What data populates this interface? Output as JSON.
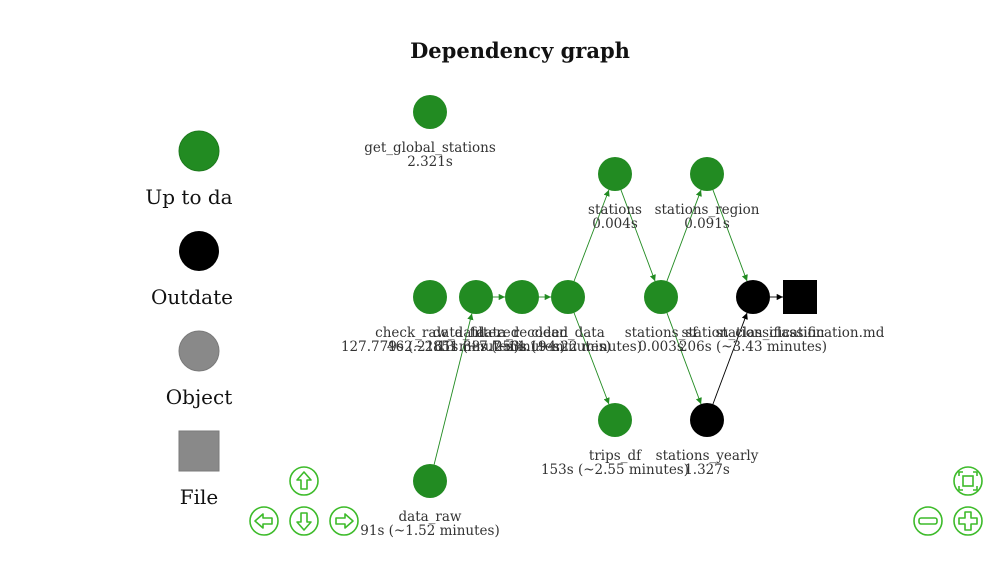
{
  "title": "Dependency graph",
  "colors": {
    "up_to_date": "#228b22",
    "outdated": "#000000",
    "object": "#898989",
    "file": "#898989",
    "edge_green": "#228b22",
    "edge_black": "#000000",
    "nav": "#3dbb2a"
  },
  "legend": {
    "up_to_date": "Up to da",
    "outdated": "Outdate",
    "object": "Object",
    "file": "File"
  },
  "nodes": {
    "get_global_stations": {
      "name": "get_global_stations",
      "time": "2.321s",
      "status": "up_to_date"
    },
    "stations": {
      "name": "stations",
      "time": "0.004s",
      "status": "up_to_date"
    },
    "stations_region": {
      "name": "stations_region",
      "time": "0.091s",
      "status": "up_to_date"
    },
    "check_raw_data": {
      "name": "check_raw_data",
      "time": "127.779s (~2.13 minutes)",
      "status": "up_to_date"
    },
    "data_filtered": {
      "name": "data_filtered",
      "time": "462.2161s (~7.7 minutes)",
      "status": "up_to_date"
    },
    "data_recoded": {
      "name": "data_recoded",
      "time": "851.38s (~14.19 minutes)",
      "status": "up_to_date"
    },
    "clean_data": {
      "name": "clean_data",
      "time": "253s (~4.22 minutes)",
      "status": "up_to_date"
    },
    "stations_sf": {
      "name": "stations_sf",
      "time": "0.003s",
      "status": "up_to_date"
    },
    "station_classification": {
      "name": "station_classification",
      "time": "206s (~3.43 minutes)",
      "status": "outdated"
    },
    "station_classification_md": {
      "name": "station_classification.md",
      "time": "",
      "status": "file"
    },
    "trips_df": {
      "name": "trips_df",
      "time": "153s (~2.55 minutes)",
      "status": "up_to_date"
    },
    "stations_yearly": {
      "name": "stations_yearly",
      "time": "1.327s",
      "status": "outdated"
    },
    "data_raw": {
      "name": "data_raw",
      "time": "91s (~1.52 minutes)",
      "status": "up_to_date"
    }
  },
  "edges": [
    {
      "from": "data_raw",
      "to": "data_filtered",
      "color": "edge_green"
    },
    {
      "from": "data_filtered",
      "to": "data_recoded",
      "color": "edge_green"
    },
    {
      "from": "data_recoded",
      "to": "clean_data",
      "color": "edge_green"
    },
    {
      "from": "clean_data",
      "to": "stations",
      "color": "edge_green"
    },
    {
      "from": "clean_data",
      "to": "trips_df",
      "color": "edge_green"
    },
    {
      "from": "stations",
      "to": "stations_sf",
      "color": "edge_green"
    },
    {
      "from": "stations_sf",
      "to": "stations_region",
      "color": "edge_green"
    },
    {
      "from": "stations_sf",
      "to": "stations_yearly",
      "color": "edge_green"
    },
    {
      "from": "stations_region",
      "to": "station_classification",
      "color": "edge_green"
    },
    {
      "from": "stations_yearly",
      "to": "station_classification",
      "color": "edge_black"
    },
    {
      "from": "station_classification",
      "to": "station_classification_md",
      "color": "edge_black"
    }
  ],
  "navigation": [
    "up",
    "left",
    "down",
    "right",
    "zoom_fit",
    "zoom_out",
    "zoom_in"
  ]
}
